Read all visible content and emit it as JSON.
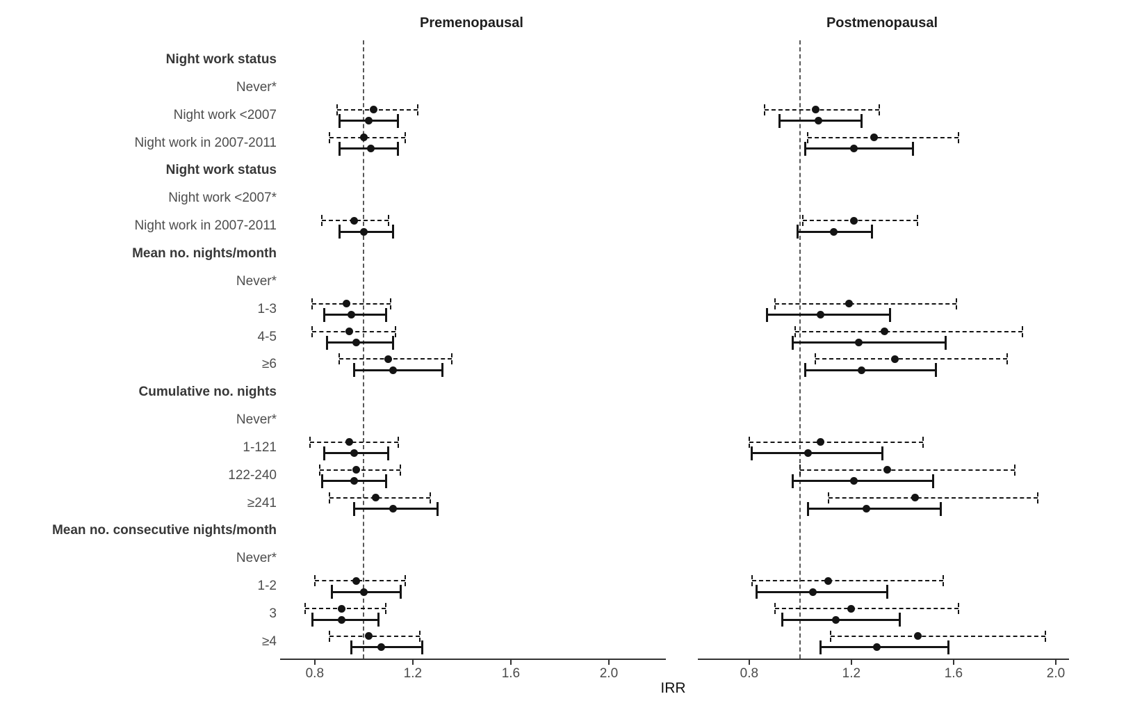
{
  "chart_data": {
    "type": "forest_plot",
    "xlabel": "IRR",
    "reference_line": 1.0,
    "x_ticks": [
      0.8,
      1.2,
      1.6,
      2.0
    ],
    "x_tick_labels": [
      "0.8",
      "1.2",
      "1.6",
      "2.0"
    ],
    "grid": false,
    "legend": "none (two estimates per row: dashed-line interval drawn above solid-line interval)",
    "estimate_styles": [
      "dashed",
      "solid"
    ],
    "panels": [
      {
        "title": "Premenopausal",
        "key": "pre",
        "x_range": [
          0.67,
          2.21
        ]
      },
      {
        "title": "Postmenopausal",
        "key": "post",
        "x_range": [
          0.61,
          2.03
        ]
      }
    ],
    "rows": [
      {
        "label": "Night work status",
        "kind": "header"
      },
      {
        "label": "Never*",
        "kind": "reference"
      },
      {
        "label": "Night work <2007",
        "kind": "data",
        "pre": {
          "dashed": [
            0.89,
            1.04,
            1.22
          ],
          "solid": [
            0.9,
            1.02,
            1.14
          ]
        },
        "post": {
          "dashed": [
            0.86,
            1.06,
            1.31
          ],
          "solid": [
            0.92,
            1.07,
            1.24
          ]
        }
      },
      {
        "label": "Night work in 2007-2011",
        "kind": "data",
        "pre": {
          "dashed": [
            0.86,
            1.0,
            1.17
          ],
          "solid": [
            0.9,
            1.03,
            1.14
          ]
        },
        "post": {
          "dashed": [
            1.03,
            1.29,
            1.62
          ],
          "solid": [
            1.02,
            1.21,
            1.44
          ]
        }
      },
      {
        "label": "Night work status",
        "kind": "header"
      },
      {
        "label": "Night work <2007*",
        "kind": "reference"
      },
      {
        "label": "Night work in 2007-2011",
        "kind": "data",
        "pre": {
          "dashed": [
            0.83,
            0.96,
            1.1
          ],
          "solid": [
            0.9,
            1.0,
            1.12
          ]
        },
        "post": {
          "dashed": [
            1.01,
            1.21,
            1.46
          ],
          "solid": [
            0.99,
            1.13,
            1.28
          ]
        }
      },
      {
        "label": "Mean no. nights/month",
        "kind": "header"
      },
      {
        "label": "Never*",
        "kind": "reference"
      },
      {
        "label": "1-3",
        "kind": "data",
        "pre": {
          "dashed": [
            0.79,
            0.93,
            1.11
          ],
          "solid": [
            0.84,
            0.95,
            1.09
          ]
        },
        "post": {
          "dashed": [
            0.9,
            1.19,
            1.61
          ],
          "solid": [
            0.87,
            1.08,
            1.35
          ]
        }
      },
      {
        "label": "4-5",
        "kind": "data",
        "pre": {
          "dashed": [
            0.79,
            0.94,
            1.13
          ],
          "solid": [
            0.85,
            0.97,
            1.12
          ]
        },
        "post": {
          "dashed": [
            0.98,
            1.33,
            1.87
          ],
          "solid": [
            0.97,
            1.23,
            1.57
          ]
        }
      },
      {
        "label": "≥6",
        "kind": "data",
        "pre": {
          "dashed": [
            0.9,
            1.1,
            1.36
          ],
          "solid": [
            0.96,
            1.12,
            1.32
          ]
        },
        "post": {
          "dashed": [
            1.06,
            1.37,
            1.81
          ],
          "solid": [
            1.02,
            1.24,
            1.53
          ]
        }
      },
      {
        "label": "Cumulative no. nights",
        "kind": "header"
      },
      {
        "label": "Never*",
        "kind": "reference"
      },
      {
        "label": "1-121",
        "kind": "data",
        "pre": {
          "dashed": [
            0.78,
            0.94,
            1.14
          ],
          "solid": [
            0.84,
            0.96,
            1.1
          ]
        },
        "post": {
          "dashed": [
            0.8,
            1.08,
            1.48
          ],
          "solid": [
            0.81,
            1.03,
            1.32
          ]
        }
      },
      {
        "label": "122-240",
        "kind": "data",
        "pre": {
          "dashed": [
            0.82,
            0.97,
            1.15
          ],
          "solid": [
            0.83,
            0.96,
            1.09
          ]
        },
        "post": {
          "dashed": [
            1.0,
            1.34,
            1.84
          ],
          "solid": [
            0.97,
            1.21,
            1.52
          ]
        }
      },
      {
        "label": "≥241",
        "kind": "data",
        "pre": {
          "dashed": [
            0.86,
            1.05,
            1.27
          ],
          "solid": [
            0.96,
            1.12,
            1.3
          ]
        },
        "post": {
          "dashed": [
            1.11,
            1.45,
            1.93
          ],
          "solid": [
            1.03,
            1.26,
            1.55
          ]
        }
      },
      {
        "label": "Mean no. consecutive nights/month",
        "kind": "header"
      },
      {
        "label": "Never*",
        "kind": "reference"
      },
      {
        "label": "1-2",
        "kind": "data",
        "pre": {
          "dashed": [
            0.8,
            0.97,
            1.17
          ],
          "solid": [
            0.87,
            1.0,
            1.15
          ]
        },
        "post": {
          "dashed": [
            0.81,
            1.11,
            1.56
          ],
          "solid": [
            0.83,
            1.05,
            1.34
          ]
        }
      },
      {
        "label": "3",
        "kind": "data",
        "pre": {
          "dashed": [
            0.76,
            0.91,
            1.09
          ],
          "solid": [
            0.79,
            0.91,
            1.06
          ]
        },
        "post": {
          "dashed": [
            0.9,
            1.2,
            1.62
          ],
          "solid": [
            0.93,
            1.14,
            1.39
          ]
        }
      },
      {
        "label": "≥4",
        "kind": "data",
        "pre": {
          "dashed": [
            0.86,
            1.02,
            1.23
          ],
          "solid": [
            0.95,
            1.07,
            1.24
          ]
        },
        "post": {
          "dashed": [
            1.12,
            1.46,
            1.96
          ],
          "solid": [
            1.08,
            1.3,
            1.58
          ]
        }
      }
    ]
  }
}
